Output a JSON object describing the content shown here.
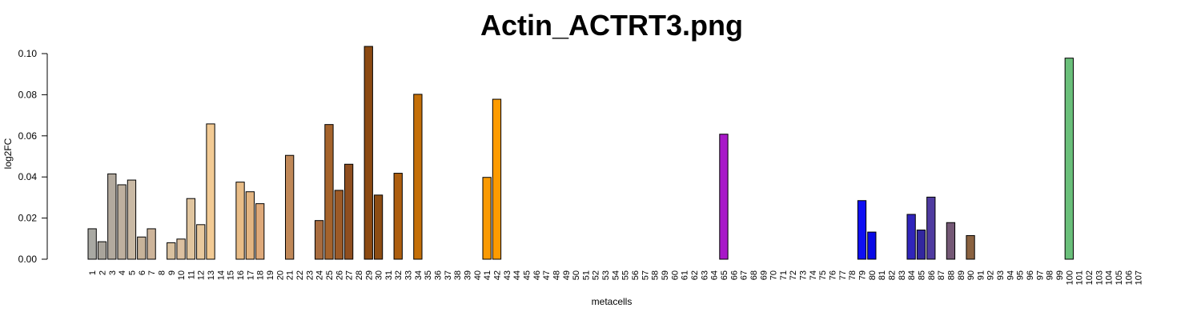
{
  "chart_data": {
    "type": "bar",
    "title": "Actin_ACTRT3.png",
    "xlabel": "metacells",
    "ylabel": "log2FC",
    "ylim": [
      0,
      0.104
    ],
    "yticks": [
      "0.00",
      "0.02",
      "0.04",
      "0.06",
      "0.08",
      "0.10"
    ],
    "grid": false,
    "categories": [
      "1",
      "2",
      "3",
      "4",
      "5",
      "6",
      "7",
      "8",
      "9",
      "10",
      "11",
      "12",
      "13",
      "14",
      "15",
      "16",
      "17",
      "18",
      "19",
      "20",
      "21",
      "22",
      "23",
      "24",
      "25",
      "26",
      "27",
      "28",
      "29",
      "30",
      "31",
      "32",
      "33",
      "34",
      "35",
      "36",
      "37",
      "38",
      "39",
      "40",
      "41",
      "42",
      "43",
      "44",
      "45",
      "46",
      "47",
      "48",
      "49",
      "50",
      "51",
      "52",
      "53",
      "54",
      "55",
      "56",
      "57",
      "58",
      "59",
      "60",
      "61",
      "62",
      "63",
      "64",
      "65",
      "66",
      "67",
      "68",
      "69",
      "70",
      "71",
      "72",
      "73",
      "74",
      "75",
      "76",
      "77",
      "78",
      "79",
      "80",
      "81",
      "82",
      "83",
      "84",
      "85",
      "86",
      "87",
      "88",
      "89",
      "90",
      "91",
      "92",
      "93",
      "94",
      "95",
      "96",
      "97",
      "98",
      "99",
      "100",
      "101",
      "102",
      "103",
      "104",
      "105",
      "106",
      "107"
    ],
    "values": [
      0.0148,
      0.0085,
      0.0415,
      0.0362,
      0.0385,
      0.0108,
      0.0148,
      0,
      0.008,
      0.0098,
      0.0295,
      0.0168,
      0.0658,
      0,
      0,
      0.0375,
      0.0328,
      0.027,
      0,
      0,
      0.0505,
      0,
      0,
      0.0188,
      0.0655,
      0.0335,
      0.0462,
      0,
      0.1035,
      0.0312,
      0,
      0.0418,
      0,
      0.0802,
      0,
      0,
      0,
      0,
      0,
      0,
      0.0398,
      0.0778,
      0,
      0,
      0,
      0,
      0,
      0,
      0,
      0,
      0,
      0,
      0,
      0,
      0,
      0,
      0,
      0,
      0,
      0,
      0,
      0,
      0,
      0,
      0.0608,
      0,
      0,
      0,
      0,
      0,
      0,
      0,
      0,
      0,
      0,
      0,
      0,
      0,
      0.0285,
      0.0132,
      0,
      0,
      0,
      0.0218,
      0.0142,
      0.0302,
      0,
      0.0178,
      0,
      0.0115,
      0,
      0,
      0,
      0,
      0,
      0,
      0,
      0,
      0,
      0.0978,
      0,
      0,
      0,
      0,
      0,
      0,
      0
    ],
    "colors": [
      "#a9a9a3",
      "#a9a49b",
      "#b3aa9e",
      "#beb09f",
      "#c9b9a4",
      "#c7b39a",
      "#cdb49a",
      "#d7bf9e",
      "#d9c19f",
      "#dcc0a0",
      "#e0c59f",
      "#e8c99e",
      "#f2ca94",
      "#f0c38f",
      "#eec18e",
      "#e9bd87",
      "#e3b582",
      "#dea97a",
      "#c9956a",
      "#c28c60",
      "#c08858",
      "#b77c4f",
      "#b27548",
      "#a86c3f",
      "#a5632c",
      "#9c5a27",
      "#8f4e1f",
      "#87461c",
      "#8c4a12",
      "#8d4d13",
      "#9c560f",
      "#ad5e0f",
      "#b9650b",
      "#c46f08",
      "#cf7906",
      "#d98305",
      "#e48d03",
      "#ec9402",
      "#f09701",
      "#ef9701",
      "#fa9a03",
      "#fe9b00",
      "#b0b0b0",
      "#b0b0b0",
      "#b0b0b0",
      "#b0b0b0",
      "#b0b0b0",
      "#b0b0b0",
      "#b0b0b0",
      "#b0b0b0",
      "#b0b0b0",
      "#b0b0b0",
      "#b0b0b0",
      "#b0b0b0",
      "#b0b0b0",
      "#b0b0b0",
      "#b0b0b0",
      "#b0b0b0",
      "#b0b0b0",
      "#b0b0b0",
      "#b0b0b0",
      "#b0b0b0",
      "#b0b0b0",
      "#b0b0b0",
      "#a818c8",
      "#b0b0b0",
      "#b0b0b0",
      "#b0b0b0",
      "#b0b0b0",
      "#b0b0b0",
      "#b0b0b0",
      "#b0b0b0",
      "#b0b0b0",
      "#b0b0b0",
      "#b0b0b0",
      "#b0b0b0",
      "#b0b0b0",
      "#b0b0b0",
      "#0f0ff2",
      "#0a0ae6",
      "#b0b0b0",
      "#b0b0b0",
      "#b0b0b0",
      "#3025bb",
      "#33279f",
      "#4f3ba0",
      "#b0b0b0",
      "#745875",
      "#b0b0b0",
      "#8a6240",
      "#b0b0b0",
      "#b0b0b0",
      "#b0b0b0",
      "#b0b0b0",
      "#b0b0b0",
      "#b0b0b0",
      "#b0b0b0",
      "#b0b0b0",
      "#b0b0b0",
      "#6abf7a",
      "#b0b0b0",
      "#b0b0b0",
      "#b0b0b0",
      "#b0b0b0",
      "#b0b0b0",
      "#b0b0b0",
      "#b0b0b0"
    ]
  }
}
